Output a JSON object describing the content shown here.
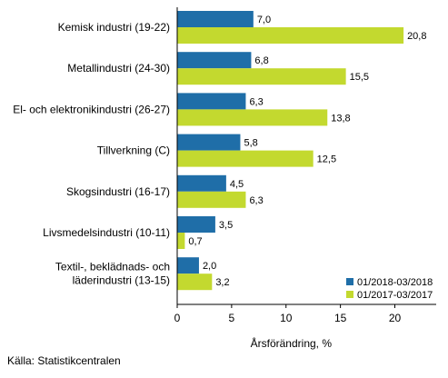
{
  "chart_data": {
    "type": "bar",
    "orientation": "horizontal",
    "categories": [
      "Kemisk industri (19-22)",
      "Metallindustri (24-30)",
      "El- och elektronikindustri (26-27)",
      "Tillverkning (C)",
      "Skogsindustri (16-17)",
      "Livsmedelsindustri (10-11)",
      "Textil-, beklädnads- och läderindustri (13-15)"
    ],
    "category_lines": [
      [
        "Kemisk industri (19-22)"
      ],
      [
        "Metallindustri (24-30)"
      ],
      [
        "El- och elektronikindustri (26-27)"
      ],
      [
        "Tillverkning (C)"
      ],
      [
        "Skogsindustri (16-17)"
      ],
      [
        "Livsmedelsindustri (10-11)"
      ],
      [
        "Textil-, beklädnads- och",
        "läderindustri (13-15)"
      ]
    ],
    "series": [
      {
        "name": "01/2018-03/2018",
        "color": "#1f6ea8",
        "values": [
          7.0,
          6.8,
          6.3,
          5.8,
          4.5,
          3.5,
          2.0
        ],
        "labels": [
          "7,0",
          "6,8",
          "6,3",
          "5,8",
          "4,5",
          "3,5",
          "2,0"
        ]
      },
      {
        "name": "01/2017-03/2017",
        "color": "#c3d92f",
        "values": [
          20.8,
          15.5,
          13.8,
          12.5,
          6.3,
          0.7,
          3.2
        ],
        "labels": [
          "20,8",
          "15,5",
          "13,8",
          "12,5",
          "6,3",
          "0,7",
          "3,2"
        ]
      }
    ],
    "xlim": [
      0,
      23.8
    ],
    "xticks": [
      0,
      5,
      10,
      15,
      20
    ],
    "xtick_labels": [
      "0",
      "5",
      "10",
      "15",
      "20"
    ],
    "xlabel": "Årsförändring, %",
    "legend_position": "bottom-right",
    "grid": false
  },
  "source": "Källa: Statistikcentralen"
}
